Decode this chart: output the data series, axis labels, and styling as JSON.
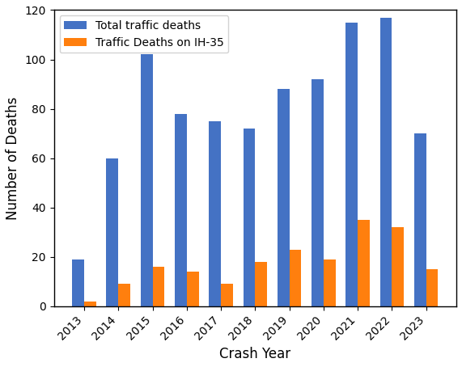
{
  "years": [
    2013,
    2014,
    2015,
    2016,
    2017,
    2018,
    2019,
    2020,
    2021,
    2022,
    2023
  ],
  "total_deaths": [
    19,
    60,
    102,
    78,
    75,
    72,
    88,
    92,
    115,
    117,
    70
  ],
  "ih35_deaths": [
    2,
    9,
    16,
    14,
    9,
    18,
    23,
    19,
    35,
    32,
    15
  ],
  "total_color": "#4472c4",
  "ih35_color": "#ff7f0e",
  "xlabel": "Crash Year",
  "ylabel": "Number of Deaths",
  "legend_total": "Total traffic deaths",
  "legend_ih35": "Traffic Deaths on IH-35",
  "ylim": [
    0,
    120
  ],
  "yticks": [
    0,
    20,
    40,
    60,
    80,
    100,
    120
  ],
  "bar_width": 0.35
}
